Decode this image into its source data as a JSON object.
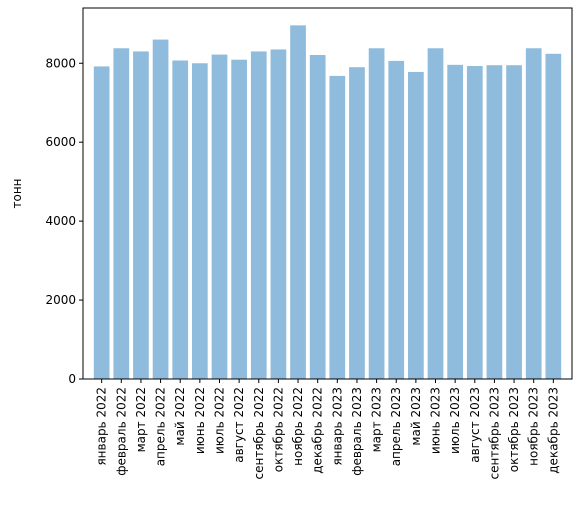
{
  "chart_data": {
    "type": "bar",
    "title": "",
    "xlabel": "",
    "ylabel": "тонн",
    "ylim": [
      0,
      9400
    ],
    "yticks": [
      0,
      2000,
      4000,
      6000,
      8000
    ],
    "grid": false,
    "bar_color": "#8fbcdc",
    "categories": [
      "январь 2022",
      "февраль 2022",
      "март 2022",
      "апрель 2022",
      "май 2022",
      "июнь 2022",
      "июль 2022",
      "август 2022",
      "сентябрь 2022",
      "октябрь 2022",
      "ноябрь 2022",
      "декабрь 2022",
      "январь 2023",
      "февраль 2023",
      "март 2023",
      "апрель 2023",
      "май 2023",
      "июнь 2023",
      "июль 2023",
      "август 2023",
      "сентябрь 2023",
      "октябрь 2023",
      "ноябрь 2023",
      "декабрь 2023"
    ],
    "values": [
      7920,
      8380,
      8300,
      8600,
      8070,
      8000,
      8220,
      8090,
      8300,
      8350,
      8960,
      8210,
      7680,
      7900,
      8380,
      8060,
      7780,
      8380,
      7960,
      7930,
      7950,
      7950,
      8380,
      8240
    ]
  }
}
